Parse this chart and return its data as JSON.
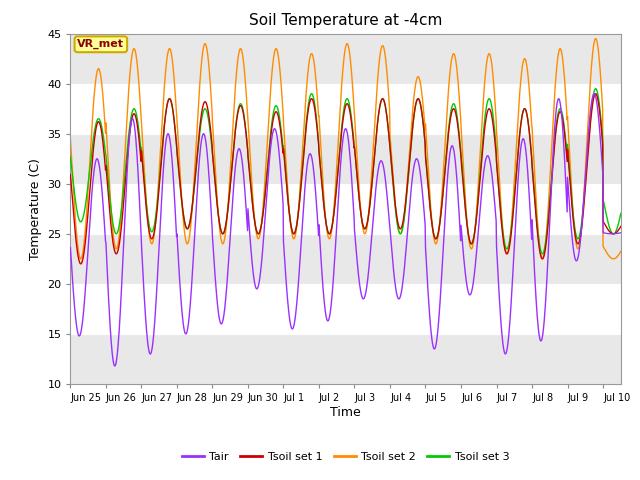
{
  "title": "Soil Temperature at -4cm",
  "xlabel": "Time",
  "ylabel": "Temperature (C)",
  "ylim": [
    10,
    45
  ],
  "yticks": [
    10,
    15,
    20,
    25,
    30,
    35,
    40,
    45
  ],
  "annotation_text": "VR_met",
  "annotation_color": "#8B0000",
  "annotation_bg": "#FFFF99",
  "annotation_edge": "#CCAA00",
  "colors": {
    "Tair": "#9B30FF",
    "Tsoil1": "#CC0000",
    "Tsoil2": "#FF8C00",
    "Tsoil3": "#00CC00"
  },
  "legend_labels": [
    "Tair",
    "Tsoil set 1",
    "Tsoil set 2",
    "Tsoil set 3"
  ],
  "fig_bg": "#FFFFFF",
  "plot_bg": "#FFFFFF",
  "band_color": "#E8E8E8",
  "grid_color": "#DDDDDD",
  "n_cycles": 15,
  "tair_min": [
    14.8,
    11.8,
    13.0,
    15.0,
    16.0,
    19.5,
    15.5,
    16.3,
    18.5,
    18.5,
    13.5,
    18.9,
    13.0,
    14.3,
    22.3,
    25.0
  ],
  "tair_max": [
    32.5,
    36.5,
    35.0,
    35.0,
    33.5,
    35.5,
    33.0,
    35.5,
    32.3,
    32.5,
    33.8,
    32.8,
    34.5,
    38.5,
    39.0,
    25.2
  ],
  "tsoil1_min": [
    22.0,
    23.0,
    24.5,
    25.5,
    25.0,
    25.0,
    25.0,
    25.0,
    25.5,
    25.5,
    24.5,
    24.0,
    23.0,
    22.5,
    24.0,
    25.0
  ],
  "tsoil1_max": [
    36.2,
    37.0,
    38.5,
    38.2,
    37.8,
    37.2,
    38.5,
    38.0,
    38.5,
    38.5,
    37.5,
    37.5,
    37.5,
    37.2,
    39.0,
    27.0
  ],
  "tsoil2_min": [
    22.5,
    23.5,
    24.0,
    24.0,
    24.0,
    24.5,
    24.5,
    24.5,
    25.0,
    25.0,
    24.0,
    23.5,
    23.0,
    22.5,
    23.5,
    22.5
  ],
  "tsoil2_max": [
    41.5,
    43.5,
    43.5,
    44.0,
    43.5,
    43.5,
    43.0,
    44.0,
    43.8,
    40.7,
    43.0,
    43.0,
    42.5,
    43.5,
    44.5,
    24.5
  ],
  "tsoil3_min": [
    26.2,
    25.0,
    25.2,
    25.5,
    25.0,
    25.0,
    25.0,
    25.0,
    25.5,
    25.0,
    24.5,
    24.0,
    23.5,
    23.0,
    24.5,
    25.0
  ],
  "tsoil3_max": [
    36.5,
    37.5,
    38.5,
    37.5,
    38.0,
    37.8,
    39.0,
    38.5,
    38.5,
    38.5,
    38.0,
    38.5,
    37.5,
    37.5,
    39.5,
    30.5
  ],
  "tick_labels": [
    "Jun 25",
    "Jun 26",
    "Jun 27",
    "Jun 28",
    "Jun 29",
    "Jun 30",
    "Jul 1",
    "Jul 2",
    "Jul 3",
    "Jul 4",
    "Jul 5",
    "Jul 6",
    "Jul 7",
    "Jul 8",
    "Jul 9",
    "Jul 10"
  ]
}
